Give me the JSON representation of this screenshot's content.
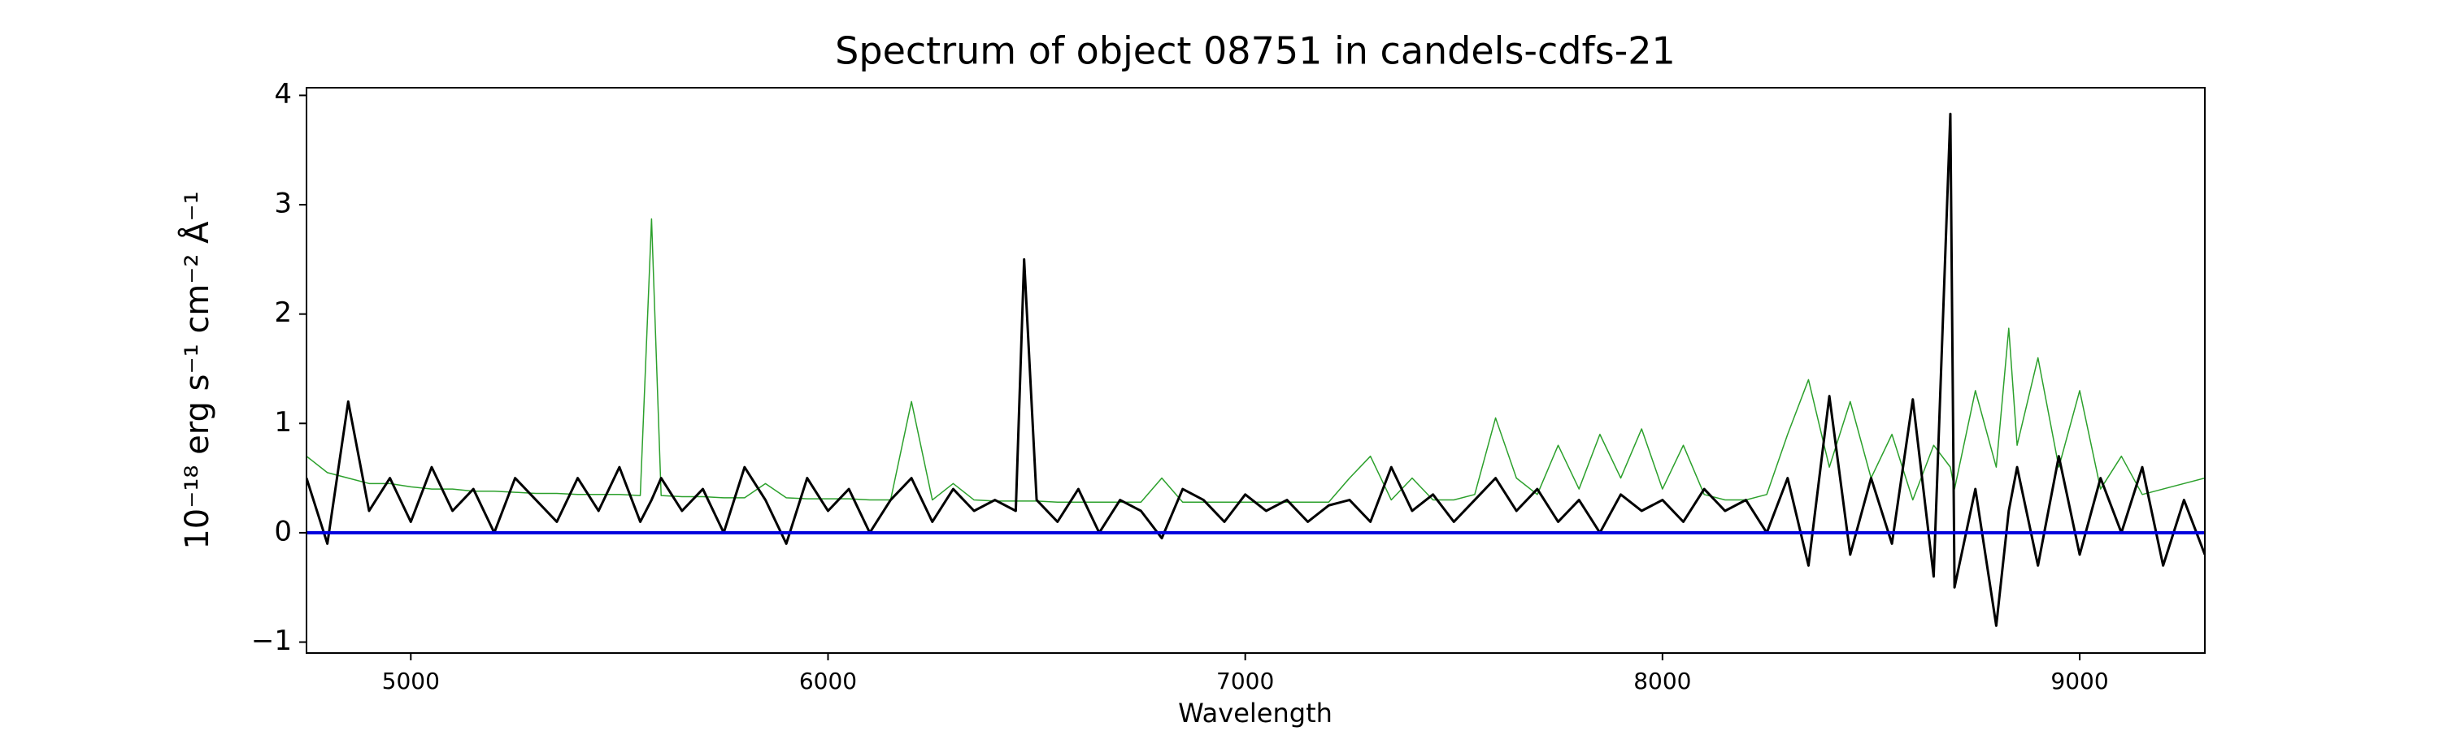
{
  "chart_data": {
    "type": "line",
    "title": "Spectrum of object 08751 in candels-cdfs-21",
    "xlabel": "Wavelength",
    "ylabel": "10⁻¹⁸ erg s⁻¹ cm⁻² Å⁻¹",
    "x": [
      4750,
      4800,
      4850,
      4900,
      4950,
      5000,
      5050,
      5100,
      5150,
      5200,
      5250,
      5300,
      5350,
      5400,
      5450,
      5500,
      5550,
      5577,
      5600,
      5650,
      5700,
      5750,
      5800,
      5850,
      5900,
      5950,
      6000,
      6050,
      6100,
      6150,
      6200,
      6250,
      6300,
      6350,
      6400,
      6450,
      6470,
      6500,
      6550,
      6600,
      6650,
      6700,
      6750,
      6800,
      6850,
      6900,
      6950,
      7000,
      7050,
      7100,
      7150,
      7200,
      7250,
      7300,
      7350,
      7400,
      7450,
      7500,
      7550,
      7600,
      7650,
      7700,
      7750,
      7800,
      7850,
      7900,
      7950,
      8000,
      8050,
      8100,
      8150,
      8200,
      8250,
      8300,
      8350,
      8400,
      8450,
      8500,
      8550,
      8600,
      8650,
      8690,
      8700,
      8750,
      8800,
      8830,
      8850,
      8900,
      8950,
      9000,
      9050,
      9100,
      9150,
      9200,
      9250,
      9300
    ],
    "series": [
      {
        "color": "#2ca02c",
        "width": 1.5,
        "values": [
          0.7,
          0.55,
          0.5,
          0.45,
          0.45,
          0.42,
          0.4,
          0.4,
          0.38,
          0.38,
          0.37,
          0.36,
          0.36,
          0.35,
          0.35,
          0.35,
          0.34,
          2.87,
          0.34,
          0.33,
          0.33,
          0.32,
          0.32,
          0.45,
          0.32,
          0.31,
          0.31,
          0.31,
          0.3,
          0.3,
          1.2,
          0.3,
          0.45,
          0.3,
          0.29,
          0.29,
          0.29,
          0.29,
          0.28,
          0.28,
          0.28,
          0.28,
          0.28,
          0.5,
          0.28,
          0.28,
          0.28,
          0.28,
          0.28,
          0.28,
          0.28,
          0.28,
          0.5,
          0.7,
          0.3,
          0.5,
          0.3,
          0.3,
          0.35,
          1.05,
          0.5,
          0.35,
          0.8,
          0.4,
          0.9,
          0.5,
          0.95,
          0.4,
          0.8,
          0.35,
          0.3,
          0.3,
          0.35,
          0.9,
          1.4,
          0.6,
          1.2,
          0.5,
          0.9,
          0.3,
          0.8,
          0.6,
          0.4,
          1.3,
          0.6,
          1.87,
          0.8,
          1.6,
          0.6,
          1.3,
          0.4,
          0.7,
          0.35,
          0.4,
          0.45,
          0.5
        ]
      },
      {
        "color": "#000000",
        "width": 3,
        "values": [
          0.5,
          -0.1,
          1.2,
          0.2,
          0.5,
          0.1,
          0.6,
          0.2,
          0.4,
          0.0,
          0.5,
          0.3,
          0.1,
          0.5,
          0.2,
          0.6,
          0.1,
          0.3,
          0.5,
          0.2,
          0.4,
          0.0,
          0.6,
          0.3,
          -0.1,
          0.5,
          0.2,
          0.4,
          0.0,
          0.3,
          0.5,
          0.1,
          0.4,
          0.2,
          0.3,
          0.2,
          2.5,
          0.3,
          0.1,
          0.4,
          0.0,
          0.3,
          0.2,
          -0.05,
          0.4,
          0.3,
          0.1,
          0.35,
          0.2,
          0.3,
          0.1,
          0.25,
          0.3,
          0.1,
          0.6,
          0.2,
          0.35,
          0.1,
          0.3,
          0.5,
          0.2,
          0.4,
          0.1,
          0.3,
          0.0,
          0.35,
          0.2,
          0.3,
          0.1,
          0.4,
          0.2,
          0.3,
          0.0,
          0.5,
          -0.3,
          1.25,
          -0.2,
          0.5,
          -0.1,
          1.22,
          -0.4,
          3.83,
          -0.5,
          0.4,
          -0.85,
          0.2,
          0.6,
          -0.3,
          0.7,
          -0.2,
          0.5,
          0.0,
          0.6,
          -0.3,
          0.3,
          -0.2
        ]
      }
    ],
    "hlines": [
      {
        "y": 0,
        "color": "#0000dd",
        "width": 4
      }
    ],
    "xlim": [
      4750,
      9300
    ],
    "ylim": [
      -1.1,
      4.07
    ],
    "xticks": [
      5000,
      6000,
      7000,
      8000,
      9000
    ],
    "yticks": [
      {
        "value": -1,
        "label": "−1"
      },
      0,
      1,
      2,
      3,
      4
    ]
  }
}
